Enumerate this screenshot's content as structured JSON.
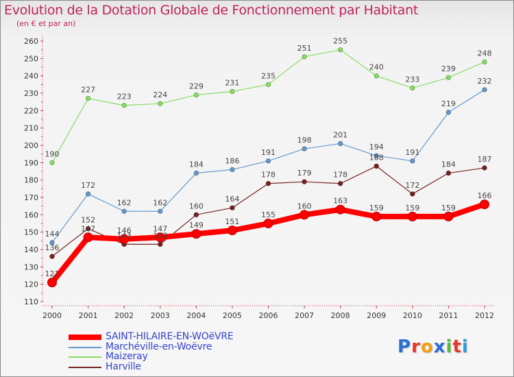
{
  "title": "Evolution de la Dotation Globale de Fonctionnement par Habitant",
  "subtitle": "(en € et par an)",
  "logo": {
    "text": "Proxiti",
    "letters": [
      "P",
      "r",
      "o",
      "x",
      "i",
      "t",
      "i"
    ],
    "colors": [
      "#2a6fd6",
      "#e8352b",
      "#f0a018",
      "#2a6fd6",
      "#56b83c",
      "#e8352b",
      "#2a9fd6"
    ]
  },
  "chart_data": {
    "type": "line",
    "title": "Evolution de la Dotation Globale de Fonctionnement par Habitant",
    "subtitle": "(en € et par an)",
    "xlabel": "",
    "ylabel": "",
    "x": [
      "2000",
      "2001",
      "2002",
      "2003",
      "2004",
      "2005",
      "2006",
      "2007",
      "2008",
      "2009",
      "2010",
      "2011",
      "2012"
    ],
    "yticks": [
      110,
      120,
      130,
      140,
      150,
      160,
      170,
      180,
      190,
      200,
      210,
      220,
      230,
      240,
      250,
      260
    ],
    "ylim": [
      110,
      260
    ],
    "grid": false,
    "legend_position": "bottom-left",
    "series": [
      {
        "name": "SAINT-HILAIRE-EN-WOëVRE",
        "color": "#ff0000",
        "highlight": true,
        "values": [
          121,
          147,
          146,
          147,
          149,
          151,
          155,
          160,
          163,
          159,
          159,
          159,
          166
        ]
      },
      {
        "name": "Marchéville-en-Woëvre",
        "color": "#6699cc",
        "highlight": false,
        "values": [
          144,
          172,
          162,
          162,
          184,
          186,
          191,
          198,
          201,
          194,
          191,
          219,
          232
        ]
      },
      {
        "name": "Maizeray",
        "color": "#88dd66",
        "highlight": false,
        "values": [
          190,
          227,
          223,
          224,
          229,
          231,
          235,
          251,
          255,
          240,
          233,
          239,
          248
        ]
      },
      {
        "name": "Harville",
        "color": "#772222",
        "highlight": false,
        "values": [
          136,
          152,
          143,
          143,
          160,
          164,
          178,
          179,
          178,
          188,
          172,
          184,
          187
        ]
      }
    ]
  }
}
